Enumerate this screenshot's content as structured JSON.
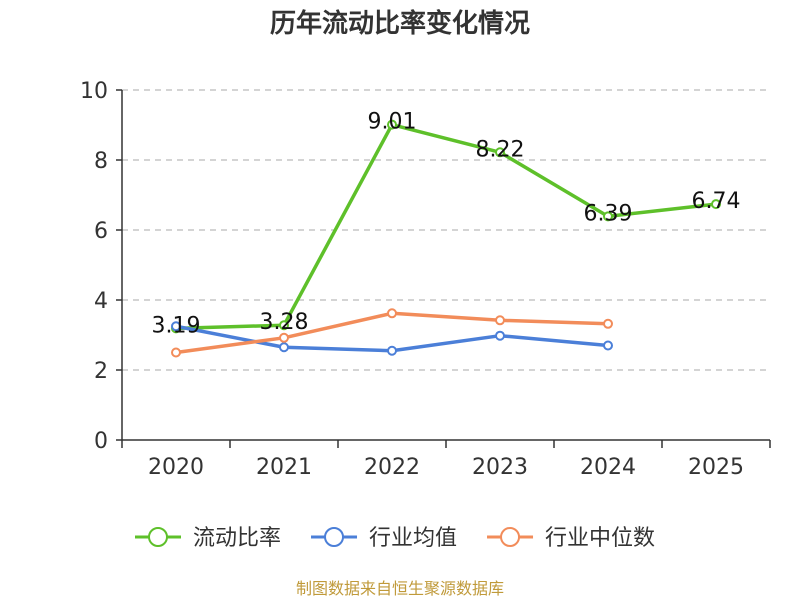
{
  "chart_data": {
    "type": "line",
    "title": "历年流动比率变化情况",
    "categories": [
      "2020",
      "2021",
      "2022",
      "2023",
      "2024",
      "2025"
    ],
    "ylim": [
      0,
      10
    ],
    "yticks": [
      "0",
      "2",
      "4",
      "6",
      "8",
      "10"
    ],
    "grid": true,
    "legend_position": "bottom",
    "series": [
      {
        "name": "流动比率",
        "color": "#5ec02a",
        "values": [
          3.19,
          3.28,
          9.01,
          8.22,
          6.39,
          6.74
        ],
        "labels": [
          "3.19",
          "3.28",
          "9.01",
          "8.22",
          "6.39",
          "6.74"
        ]
      },
      {
        "name": "行业均值",
        "color": "#4b7fd8",
        "values": [
          3.25,
          2.65,
          2.55,
          2.98,
          2.7,
          null
        ]
      },
      {
        "name": "行业中位数",
        "color": "#f28c5a",
        "values": [
          2.5,
          2.92,
          3.62,
          3.42,
          3.32,
          null
        ]
      }
    ]
  },
  "source": "制图数据来自恒生聚源数据库"
}
